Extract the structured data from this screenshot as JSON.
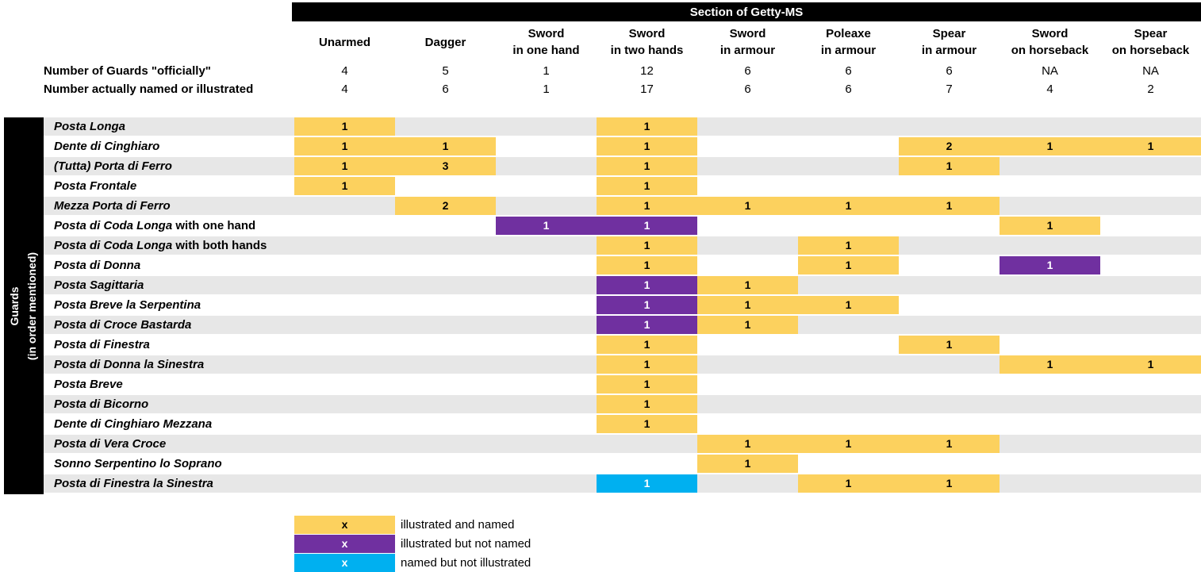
{
  "banner": {
    "title": "Section of Getty-MS"
  },
  "sidebar": {
    "line1": "Guards",
    "line2": "(in order mentioned)"
  },
  "header_rows": {
    "official": {
      "label": "Number of Guards \"officially\""
    },
    "actual": {
      "label": "Number actually named or illustrated"
    }
  },
  "colors": {
    "illustrated_and_named": "#FCD15E",
    "illustrated_not_named": "#7030A0",
    "named_not_illustrated": "#00B0F0",
    "stripe": "#E7E7E7",
    "banner_bg": "#000000",
    "banner_text": "#FFFFFF"
  },
  "chart_data": {
    "type": "heatmap",
    "title": "Section of Getty-MS",
    "xlabel": "Section of Getty-MS",
    "ylabel": "Guards (in order mentioned)",
    "legend_position": "bottom",
    "columns": [
      "Unarmed",
      "Dagger",
      "Sword in one hand",
      "Sword in two hands",
      "Sword in armour",
      "Poleaxe in armour",
      "Spear in armour",
      "Sword on horseback",
      "Spear on horseback"
    ],
    "column_lines": [
      [
        "Unarmed"
      ],
      [
        "Dagger"
      ],
      [
        "Sword",
        "in one hand"
      ],
      [
        "Sword",
        "in two hands"
      ],
      [
        "Sword",
        "in armour"
      ],
      [
        "Poleaxe",
        "in armour"
      ],
      [
        "Spear",
        "in armour"
      ],
      [
        "Sword",
        "on horseback"
      ],
      [
        "Spear",
        "on horseback"
      ]
    ],
    "guards_official": [
      "4",
      "5",
      "1",
      "12",
      "6",
      "6",
      "6",
      "NA",
      "NA"
    ],
    "guards_actual": [
      "4",
      "6",
      "1",
      "17",
      "6",
      "6",
      "7",
      "4",
      "2"
    ],
    "rows": [
      {
        "name": "Posta Longa",
        "suffix": "",
        "cells": [
          {
            "col": 0,
            "value": "1",
            "status": "illustrated_and_named"
          },
          {
            "col": 3,
            "value": "1",
            "status": "illustrated_and_named"
          }
        ]
      },
      {
        "name": "Dente di Cinghiaro",
        "suffix": "",
        "cells": [
          {
            "col": 0,
            "value": "1",
            "status": "illustrated_and_named"
          },
          {
            "col": 1,
            "value": "1",
            "status": "illustrated_and_named"
          },
          {
            "col": 3,
            "value": "1",
            "status": "illustrated_and_named"
          },
          {
            "col": 6,
            "value": "2",
            "status": "illustrated_and_named"
          },
          {
            "col": 7,
            "value": "1",
            "status": "illustrated_and_named"
          },
          {
            "col": 8,
            "value": "1",
            "status": "illustrated_and_named"
          }
        ]
      },
      {
        "name": "(Tutta) Porta di Ferro",
        "suffix": "",
        "cells": [
          {
            "col": 0,
            "value": "1",
            "status": "illustrated_and_named"
          },
          {
            "col": 1,
            "value": "3",
            "status": "illustrated_and_named"
          },
          {
            "col": 3,
            "value": "1",
            "status": "illustrated_and_named"
          },
          {
            "col": 6,
            "value": "1",
            "status": "illustrated_and_named"
          }
        ]
      },
      {
        "name": "Posta Frontale",
        "suffix": "",
        "cells": [
          {
            "col": 0,
            "value": "1",
            "status": "illustrated_and_named"
          },
          {
            "col": 3,
            "value": "1",
            "status": "illustrated_and_named"
          }
        ]
      },
      {
        "name": "Mezza Porta di Ferro",
        "suffix": "",
        "cells": [
          {
            "col": 1,
            "value": "2",
            "status": "illustrated_and_named"
          },
          {
            "col": 3,
            "value": "1",
            "status": "illustrated_and_named"
          },
          {
            "col": 4,
            "value": "1",
            "status": "illustrated_and_named"
          },
          {
            "col": 5,
            "value": "1",
            "status": "illustrated_and_named"
          },
          {
            "col": 6,
            "value": "1",
            "status": "illustrated_and_named"
          }
        ]
      },
      {
        "name": "Posta di Coda Longa",
        "suffix": " with one hand",
        "cells": [
          {
            "col": 2,
            "value": "1",
            "status": "illustrated_not_named"
          },
          {
            "col": 3,
            "value": "1",
            "status": "illustrated_not_named"
          },
          {
            "col": 7,
            "value": "1",
            "status": "illustrated_and_named"
          }
        ]
      },
      {
        "name": "Posta di Coda Longa",
        "suffix": " with both hands",
        "cells": [
          {
            "col": 3,
            "value": "1",
            "status": "illustrated_and_named"
          },
          {
            "col": 5,
            "value": "1",
            "status": "illustrated_and_named"
          }
        ]
      },
      {
        "name": "Posta di Donna",
        "suffix": "",
        "cells": [
          {
            "col": 3,
            "value": "1",
            "status": "illustrated_and_named"
          },
          {
            "col": 5,
            "value": "1",
            "status": "illustrated_and_named"
          },
          {
            "col": 7,
            "value": "1",
            "status": "illustrated_not_named"
          }
        ]
      },
      {
        "name": "Posta Sagittaria",
        "suffix": "",
        "cells": [
          {
            "col": 3,
            "value": "1",
            "status": "illustrated_not_named"
          },
          {
            "col": 4,
            "value": "1",
            "status": "illustrated_and_named"
          }
        ]
      },
      {
        "name": "Posta Breve la Serpentina",
        "suffix": "",
        "cells": [
          {
            "col": 3,
            "value": "1",
            "status": "illustrated_not_named"
          },
          {
            "col": 4,
            "value": "1",
            "status": "illustrated_and_named"
          },
          {
            "col": 5,
            "value": "1",
            "status": "illustrated_and_named"
          }
        ]
      },
      {
        "name": "Posta di Croce Bastarda",
        "suffix": "",
        "cells": [
          {
            "col": 3,
            "value": "1",
            "status": "illustrated_not_named"
          },
          {
            "col": 4,
            "value": "1",
            "status": "illustrated_and_named"
          }
        ]
      },
      {
        "name": "Posta di Finestra",
        "suffix": "",
        "cells": [
          {
            "col": 3,
            "value": "1",
            "status": "illustrated_and_named"
          },
          {
            "col": 6,
            "value": "1",
            "status": "illustrated_and_named"
          }
        ]
      },
      {
        "name": "Posta di Donna la Sinestra",
        "suffix": "",
        "cells": [
          {
            "col": 3,
            "value": "1",
            "status": "illustrated_and_named"
          },
          {
            "col": 7,
            "value": "1",
            "status": "illustrated_and_named"
          },
          {
            "col": 8,
            "value": "1",
            "status": "illustrated_and_named"
          }
        ]
      },
      {
        "name": "Posta Breve",
        "suffix": "",
        "cells": [
          {
            "col": 3,
            "value": "1",
            "status": "illustrated_and_named"
          }
        ]
      },
      {
        "name": "Posta di Bicorno",
        "suffix": "",
        "cells": [
          {
            "col": 3,
            "value": "1",
            "status": "illustrated_and_named"
          }
        ]
      },
      {
        "name": "Dente di Cinghiaro Mezzana",
        "suffix": "",
        "cells": [
          {
            "col": 3,
            "value": "1",
            "status": "illustrated_and_named"
          }
        ]
      },
      {
        "name": "Posta di Vera Croce",
        "suffix": "",
        "cells": [
          {
            "col": 4,
            "value": "1",
            "status": "illustrated_and_named"
          },
          {
            "col": 5,
            "value": "1",
            "status": "illustrated_and_named"
          },
          {
            "col": 6,
            "value": "1",
            "status": "illustrated_and_named"
          }
        ]
      },
      {
        "name": "Sonno Serpentino lo Soprano",
        "suffix": "",
        "cells": [
          {
            "col": 4,
            "value": "1",
            "status": "illustrated_and_named"
          }
        ]
      },
      {
        "name": "Posta di Finestra la Sinestra",
        "suffix": "",
        "cells": [
          {
            "col": 3,
            "value": "1",
            "status": "named_but_not_illustrated_key"
          },
          {
            "col": 5,
            "value": "1",
            "status": "illustrated_and_named"
          },
          {
            "col": 6,
            "value": "1",
            "status": "illustrated_and_named"
          }
        ]
      }
    ],
    "legend": [
      {
        "status": "illustrated_and_named",
        "marker": "x",
        "label": "illustrated and named",
        "color": "#FCD15E",
        "text_color": "#000000"
      },
      {
        "status": "illustrated_not_named",
        "marker": "x",
        "label": "illustrated but not named",
        "color": "#7030A0",
        "text_color": "#FFFFFF"
      },
      {
        "status": "named_but_not_illustrated_key",
        "marker": "x",
        "label": "named but not illustrated",
        "color": "#00B0F0",
        "text_color": "#FFFFFF"
      }
    ]
  }
}
